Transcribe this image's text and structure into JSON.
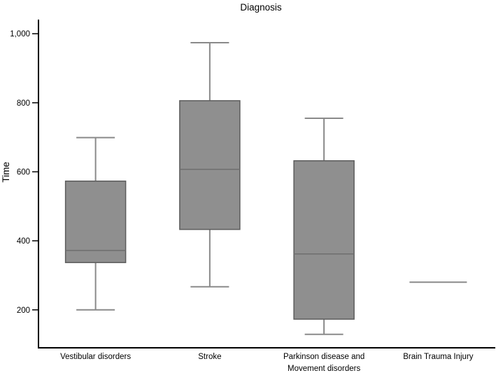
{
  "chart_data": {
    "type": "box",
    "title": "Diagnosis",
    "ylabel": "Time",
    "xlabel": "",
    "ylim": [
      90,
      1041
    ],
    "grid": false,
    "legend": null,
    "yticks": [
      {
        "value": 200,
        "label": "200"
      },
      {
        "value": 400,
        "label": "400"
      },
      {
        "value": 600,
        "label": "600"
      },
      {
        "value": 800,
        "label": "800"
      },
      {
        "value": 1000,
        "label": "1,000"
      }
    ],
    "categories": [
      "Vestibular disorders",
      "Stroke",
      "Parkinson disease and\nMovement disorders",
      "Brain Trauma Injury"
    ],
    "boxes": [
      {
        "name": "Vestibular disorders",
        "whisker_low": 200,
        "q1": 337,
        "median": 372,
        "q3": 573,
        "whisker_high": 699
      },
      {
        "name": "Stroke",
        "whisker_low": 267,
        "q1": 433,
        "median": 607,
        "q3": 806,
        "whisker_high": 974
      },
      {
        "name": "Parkinson disease and Movement disorders",
        "whisker_low": 129,
        "q1": 173,
        "median": 362,
        "q3": 632,
        "whisker_high": 755
      },
      {
        "name": "Brain Trauma Injury",
        "whisker_low": 280,
        "q1": 280,
        "median": 280,
        "q3": 280,
        "whisker_high": 280
      }
    ],
    "colors": {
      "box_fill": "#8f8f8f",
      "box_border": "#5c5c5c",
      "median_line": "#6e6e6e",
      "whisker": "#8a8a8a",
      "axis": "#000000",
      "text": "#000000",
      "background": "#ffffff"
    }
  }
}
